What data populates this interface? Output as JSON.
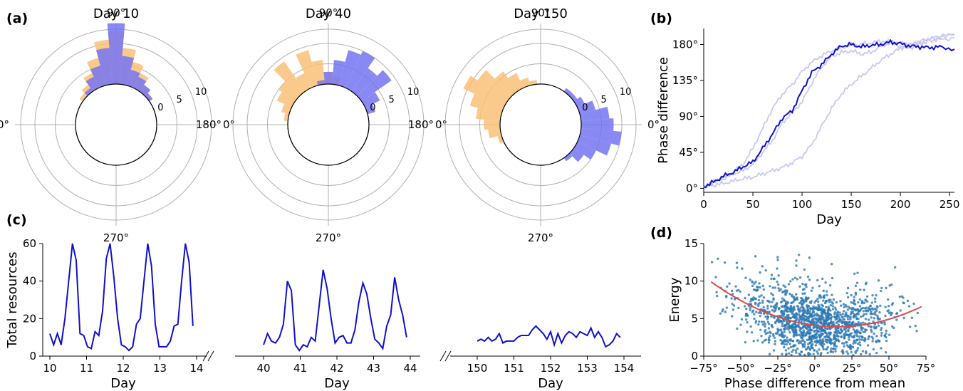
{
  "panel_labels": {
    "a": "(a)",
    "b": "(b)",
    "c": "(c)",
    "d": "(d)"
  },
  "colors": {
    "blue_bar": "#7474f2",
    "orange_bar": "#f9bf78",
    "overlap": "#a87474",
    "line_blue": "#1010cc",
    "light_blue": "#c8c8f4",
    "scatter": "#2a78b4",
    "fit_red": "#e04848",
    "grid": "#b0b0b0"
  },
  "chart_data": [
    {
      "type": "polar_histogram",
      "title": "Day 10",
      "angle_labels": [
        "90°",
        "180°",
        "0°",
        "270°"
      ],
      "radial_ticks": [
        "0",
        "5",
        "10"
      ],
      "bin_deg": 10,
      "blue": [
        [
          40,
          1
        ],
        [
          50,
          2
        ],
        [
          60,
          3
        ],
        [
          70,
          4
        ],
        [
          80,
          7
        ],
        [
          90,
          15
        ],
        [
          100,
          9
        ],
        [
          110,
          5
        ],
        [
          120,
          3
        ],
        [
          130,
          1
        ]
      ],
      "orange": [
        [
          40,
          1
        ],
        [
          50,
          2
        ],
        [
          60,
          4
        ],
        [
          70,
          6
        ],
        [
          80,
          9
        ],
        [
          90,
          13
        ],
        [
          100,
          11
        ],
        [
          110,
          7
        ],
        [
          120,
          4
        ],
        [
          130,
          2
        ],
        [
          140,
          1
        ]
      ]
    },
    {
      "type": "polar_histogram",
      "title": "Day 40",
      "angle_labels": [
        "90°",
        "180°",
        "0°",
        "270°"
      ],
      "radial_ticks": [
        "0",
        "5",
        "10"
      ],
      "bin_deg": 10,
      "blue": [
        [
          20,
          2
        ],
        [
          30,
          4
        ],
        [
          40,
          9
        ],
        [
          50,
          7
        ],
        [
          60,
          10
        ],
        [
          70,
          9
        ],
        [
          80,
          6
        ],
        [
          90,
          3
        ],
        [
          100,
          1
        ]
      ],
      "orange": [
        [
          80,
          2
        ],
        [
          90,
          3
        ],
        [
          100,
          6
        ],
        [
          110,
          9
        ],
        [
          120,
          4
        ],
        [
          130,
          9
        ],
        [
          140,
          5
        ],
        [
          150,
          4
        ],
        [
          160,
          2
        ],
        [
          170,
          1
        ]
      ]
    },
    {
      "type": "polar_histogram",
      "title": "Day 150",
      "angle_labels": [
        "90°",
        "180°",
        "0°",
        "270°"
      ],
      "radial_ticks": [
        "0",
        "5",
        "10"
      ],
      "bin_deg": 10,
      "blue": [
        [
          -50,
          1
        ],
        [
          -40,
          3
        ],
        [
          -30,
          5
        ],
        [
          -20,
          8
        ],
        [
          -10,
          10
        ],
        [
          0,
          8
        ],
        [
          10,
          7
        ],
        [
          20,
          4
        ],
        [
          30,
          2
        ],
        [
          40,
          1
        ],
        [
          50,
          1
        ]
      ],
      "orange": [
        [
          100,
          1
        ],
        [
          110,
          2
        ],
        [
          120,
          4
        ],
        [
          130,
          6
        ],
        [
          140,
          9
        ],
        [
          150,
          11
        ],
        [
          160,
          8
        ],
        [
          170,
          6
        ],
        [
          180,
          4
        ],
        [
          190,
          3
        ],
        [
          200,
          1
        ]
      ]
    },
    {
      "type": "line",
      "xlabel": "Day",
      "ylabel": "Phase difference",
      "xlim": [
        0,
        255
      ],
      "ylim": [
        -5,
        200
      ],
      "x_ticks": [
        0,
        50,
        100,
        150,
        200,
        250
      ],
      "y_ticks": [
        "0°",
        "45°",
        "90°",
        "135°",
        "180°"
      ],
      "y_tick_values": [
        0,
        45,
        90,
        135,
        180
      ],
      "series": [
        {
          "style": "dark",
          "points": [
            [
              0,
              2
            ],
            [
              10,
              8
            ],
            [
              20,
              15
            ],
            [
              30,
              20
            ],
            [
              40,
              27
            ],
            [
              50,
              33
            ],
            [
              60,
              50
            ],
            [
              70,
              68
            ],
            [
              80,
              88
            ],
            [
              90,
              97
            ],
            [
              100,
              122
            ],
            [
              110,
              145
            ],
            [
              120,
              155
            ],
            [
              130,
              168
            ],
            [
              140,
              178
            ],
            [
              150,
              180
            ],
            [
              160,
              177
            ],
            [
              170,
              179
            ],
            [
              180,
              180
            ],
            [
              190,
              183
            ],
            [
              200,
              181
            ],
            [
              210,
              178
            ],
            [
              220,
              177
            ],
            [
              230,
              176
            ],
            [
              240,
              177
            ],
            [
              255,
              174
            ]
          ]
        },
        {
          "style": "light",
          "points": [
            [
              0,
              2
            ],
            [
              10,
              8
            ],
            [
              20,
              14
            ],
            [
              30,
              20
            ],
            [
              40,
              30
            ],
            [
              50,
              50
            ],
            [
              60,
              75
            ],
            [
              70,
              100
            ],
            [
              80,
              118
            ],
            [
              90,
              130
            ],
            [
              100,
              146
            ],
            [
              110,
              158
            ],
            [
              120,
              166
            ],
            [
              130,
              172
            ],
            [
              140,
              176
            ],
            [
              150,
              180
            ],
            [
              160,
              180
            ],
            [
              170,
              182
            ],
            [
              180,
              184
            ],
            [
              190,
              184
            ],
            [
              200,
              182
            ],
            [
              210,
              180
            ],
            [
              220,
              183
            ],
            [
              230,
              185
            ],
            [
              240,
              186
            ],
            [
              255,
              188
            ]
          ]
        },
        {
          "style": "light",
          "points": [
            [
              0,
              2
            ],
            [
              10,
              7
            ],
            [
              20,
              12
            ],
            [
              30,
              18
            ],
            [
              40,
              22
            ],
            [
              50,
              30
            ],
            [
              60,
              45
            ],
            [
              70,
              60
            ],
            [
              80,
              82
            ],
            [
              90,
              95
            ],
            [
              100,
              108
            ],
            [
              110,
              132
            ],
            [
              120,
              152
            ],
            [
              130,
              165
            ],
            [
              140,
              170
            ],
            [
              150,
              172
            ],
            [
              160,
              168
            ],
            [
              170,
              170
            ],
            [
              180,
              178
            ],
            [
              190,
              182
            ],
            [
              200,
              178
            ],
            [
              210,
              176
            ],
            [
              220,
              180
            ],
            [
              230,
              186
            ],
            [
              240,
              190
            ],
            [
              255,
              193
            ]
          ]
        },
        {
          "style": "light",
          "points": [
            [
              0,
              2
            ],
            [
              10,
              4
            ],
            [
              20,
              6
            ],
            [
              30,
              9
            ],
            [
              40,
              12
            ],
            [
              50,
              14
            ],
            [
              60,
              18
            ],
            [
              70,
              22
            ],
            [
              80,
              26
            ],
            [
              90,
              32
            ],
            [
              100,
              40
            ],
            [
              110,
              55
            ],
            [
              120,
              78
            ],
            [
              130,
              100
            ],
            [
              140,
              118
            ],
            [
              150,
              130
            ],
            [
              160,
              140
            ],
            [
              170,
              150
            ],
            [
              180,
              160
            ],
            [
              190,
              168
            ],
            [
              200,
              175
            ],
            [
              210,
              180
            ],
            [
              220,
              184
            ],
            [
              230,
              188
            ],
            [
              240,
              190
            ],
            [
              255,
              192
            ]
          ]
        }
      ]
    },
    {
      "type": "line",
      "xlabel": "Day",
      "ylabel": "Total resources",
      "ylim": [
        0,
        60
      ],
      "y_ticks": [
        0,
        20,
        40,
        60
      ],
      "segments": [
        {
          "x_ticks": [
            "10",
            "11",
            "12",
            "13",
            "14"
          ],
          "x0": 10,
          "values": [
            12,
            6,
            12,
            6,
            20,
            40,
            60,
            51,
            12,
            11,
            5,
            4,
            13,
            11,
            24,
            52,
            60,
            42,
            20,
            6,
            5,
            3,
            5,
            17,
            20,
            40,
            60,
            48,
            17,
            5,
            5,
            5,
            8,
            16,
            17,
            40,
            60,
            50,
            16
          ]
        },
        {
          "x_ticks": [
            "40",
            "41",
            "42",
            "43",
            "44"
          ],
          "x0": 40,
          "values": [
            6,
            12,
            8,
            7,
            10,
            17,
            40,
            35,
            6,
            3,
            6,
            5,
            10,
            8,
            27,
            46,
            36,
            20,
            7,
            10,
            11,
            7,
            7,
            14,
            29,
            39,
            33,
            20,
            9,
            7,
            4,
            16,
            22,
            42,
            30,
            22,
            10
          ]
        },
        {
          "x_ticks": [
            "150",
            "151",
            "152",
            "153",
            "154"
          ],
          "x0": 150,
          "values": [
            8,
            9,
            8,
            10,
            8,
            9,
            12,
            7,
            8,
            8,
            8,
            10,
            11,
            11,
            11,
            14,
            16,
            14,
            12,
            9,
            13,
            6,
            12,
            7,
            11,
            13,
            12,
            10,
            13,
            12,
            11,
            15,
            10,
            13,
            10,
            5,
            6,
            8,
            12,
            10
          ]
        }
      ]
    },
    {
      "type": "scatter",
      "xlabel": "Phase difference from mean",
      "ylabel": "Energy",
      "xlim": [
        -75,
        75
      ],
      "ylim": [
        0,
        15
      ],
      "x_ticks": [
        "−75°",
        "−50°",
        "−25°",
        "0°",
        "25°",
        "50°",
        "75°"
      ],
      "x_tick_values": [
        -75,
        -50,
        -25,
        0,
        25,
        50,
        75
      ],
      "y_ticks": [
        0,
        5,
        10,
        15
      ],
      "fit": {
        "a": 0.00083,
        "center": 15,
        "min": 3.9
      },
      "n_points": 1500
    }
  ]
}
